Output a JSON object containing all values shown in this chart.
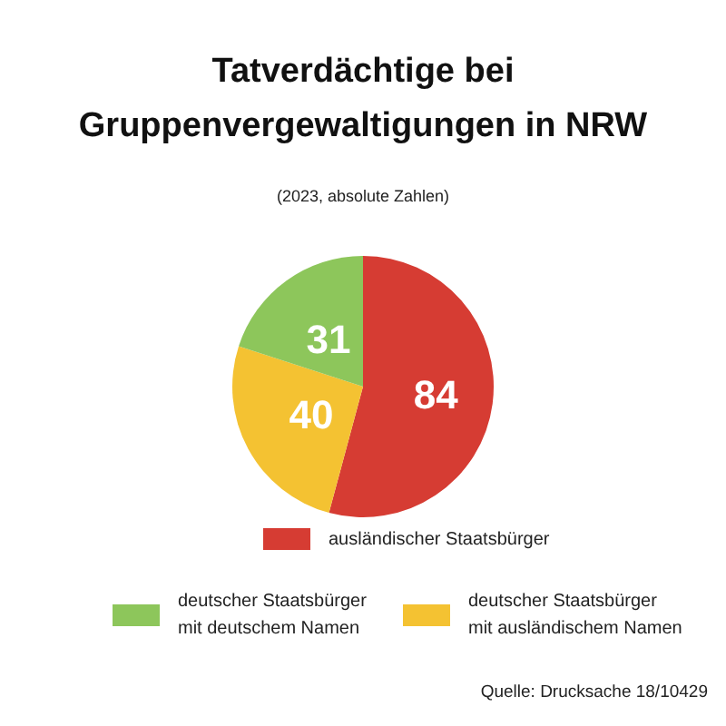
{
  "chart_data": {
    "type": "pie",
    "title": "Tatverdächtige bei Gruppenvergewaltigungen in NRW",
    "subtitle": "(2023, absolute Zahlen)",
    "categories": [
      "ausländischer Staatsbürger",
      "deutscher Staatsbürger mit ausländischem Namen",
      "deutscher Staatsbürger mit  deutschem Namen"
    ],
    "values": [
      84,
      40,
      31
    ],
    "colors": [
      "#d63c33",
      "#f4c232",
      "#8dc65b"
    ],
    "data_labels": true,
    "legend": "bottom",
    "annotations": [
      "Quelle: Drucksache 18/10429"
    ]
  }
}
